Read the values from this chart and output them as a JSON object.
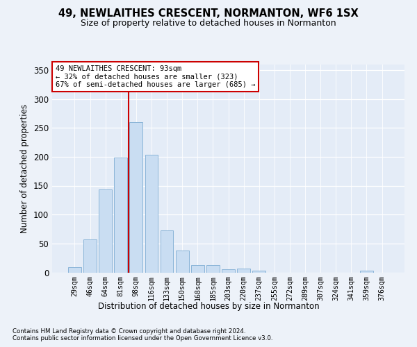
{
  "title": "49, NEWLAITHES CRESCENT, NORMANTON, WF6 1SX",
  "subtitle": "Size of property relative to detached houses in Normanton",
  "xlabel": "Distribution of detached houses by size in Normanton",
  "ylabel": "Number of detached properties",
  "categories": [
    "29sqm",
    "46sqm",
    "64sqm",
    "81sqm",
    "98sqm",
    "116sqm",
    "133sqm",
    "150sqm",
    "168sqm",
    "185sqm",
    "203sqm",
    "220sqm",
    "237sqm",
    "255sqm",
    "272sqm",
    "289sqm",
    "307sqm",
    "324sqm",
    "341sqm",
    "359sqm",
    "376sqm"
  ],
  "values": [
    9,
    57,
    143,
    199,
    260,
    204,
    73,
    38,
    13,
    13,
    6,
    7,
    3,
    0,
    0,
    0,
    0,
    0,
    0,
    3,
    0
  ],
  "bar_color": "#c9ddf2",
  "bar_edge_color": "#8ab4d8",
  "vline_color": "#cc0000",
  "vline_xindex": 3.5,
  "annotation_text": "49 NEWLAITHES CRESCENT: 93sqm\n← 32% of detached houses are smaller (323)\n67% of semi-detached houses are larger (685) →",
  "ylim_max": 360,
  "yticks": [
    0,
    50,
    100,
    150,
    200,
    250,
    300,
    350
  ],
  "footer_line1": "Contains HM Land Registry data © Crown copyright and database right 2024.",
  "footer_line2": "Contains public sector information licensed under the Open Government Licence v3.0.",
  "bg_color": "#edf2f9",
  "plot_bg_color": "#e4ecf7"
}
